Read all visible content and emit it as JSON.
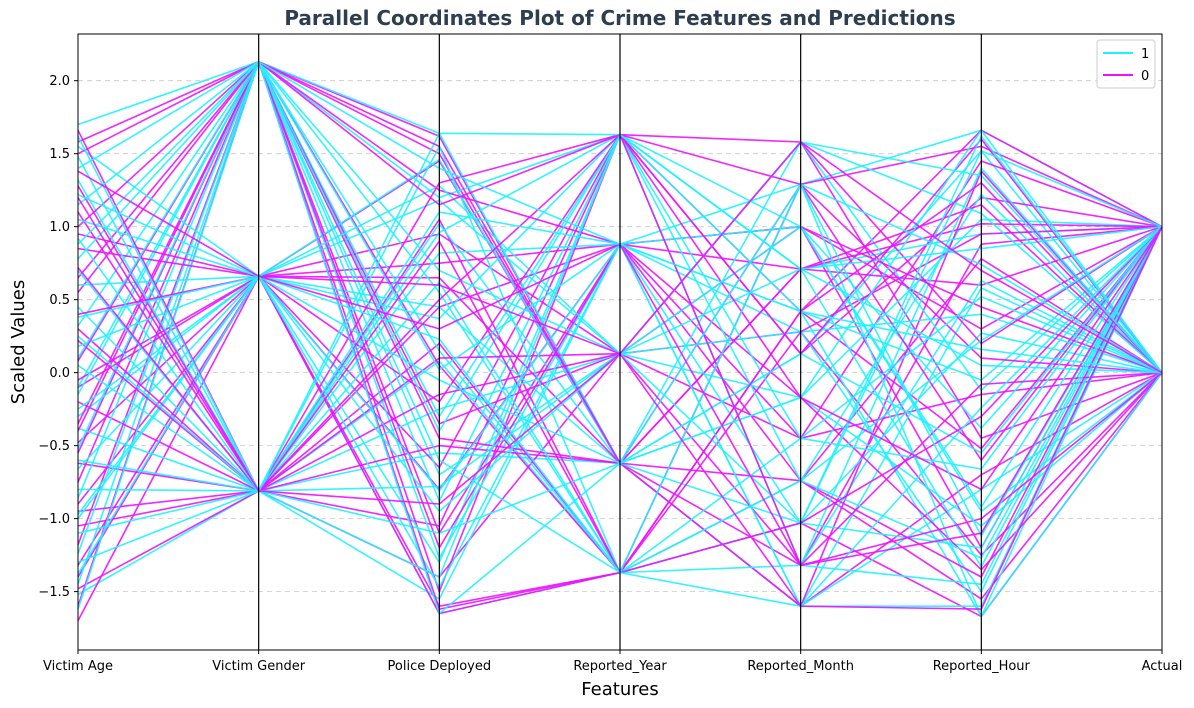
{
  "chart_data": {
    "type": "parallel_coordinates",
    "title": "Parallel Coordinates Plot of Crime Features and Predictions",
    "xlabel": "Features",
    "ylabel": "Scaled Values",
    "features": [
      "Victim Age",
      "Victim Gender",
      "Police Deployed",
      "Reported_Year",
      "Reported_Month",
      "Reported_Hour",
      "Actual"
    ],
    "ylim": [
      -1.9,
      2.32
    ],
    "yticks": [
      -1.5,
      -1.0,
      -0.5,
      0.0,
      0.5,
      1.0,
      1.5,
      2.0
    ],
    "ytick_labels": [
      "−1.5",
      "−1.0",
      "−0.5",
      "0.0",
      "0.5",
      "1.0",
      "1.5",
      "2.0"
    ],
    "grid": "y-dashed",
    "legend_position": "top-right",
    "legend": [
      {
        "label": "1",
        "color": "#1ff2ff"
      },
      {
        "label": "0",
        "color": "#ee10ff"
      }
    ],
    "discrete_levels": {
      "Victim Gender": [
        -0.81,
        0.66,
        2.13
      ],
      "Reported_Year": [
        -1.37,
        -0.62,
        0.13,
        0.88,
        1.63
      ],
      "Actual": [
        0.0,
        1.0
      ]
    },
    "series": [
      {
        "name": "1",
        "color": "#1ff2ff",
        "rows": [
          [
            1.7,
            2.13,
            0.7,
            0.13,
            -1.03,
            1.52,
            1.0
          ],
          [
            1.55,
            0.66,
            -0.81,
            0.88,
            1.29,
            -1.67,
            0.0
          ],
          [
            1.32,
            -0.81,
            1.64,
            1.63,
            0.71,
            0.85,
            1.0
          ],
          [
            1.15,
            2.13,
            -1.65,
            -0.62,
            -0.17,
            1.66,
            0.0
          ],
          [
            1.05,
            0.66,
            0.23,
            -1.37,
            -1.6,
            -0.24,
            1.0
          ],
          [
            0.92,
            -0.81,
            1.1,
            0.88,
            0.42,
            0.16,
            0.0
          ],
          [
            0.78,
            2.13,
            -0.4,
            1.63,
            -0.74,
            -1.27,
            1.0
          ],
          [
            0.6,
            0.66,
            1.28,
            0.13,
            1.58,
            1.09,
            0.0
          ],
          [
            0.45,
            -0.81,
            -1.1,
            -0.62,
            0.13,
            -0.55,
            1.0
          ],
          [
            0.32,
            2.13,
            0.55,
            -1.37,
            -1.32,
            1.4,
            0.0
          ],
          [
            0.18,
            0.66,
            -1.47,
            0.88,
            1.0,
            -0.92,
            1.0
          ],
          [
            0.05,
            -0.81,
            0.96,
            1.63,
            -0.45,
            0.52,
            0.0
          ],
          [
            -0.1,
            2.13,
            -0.7,
            0.13,
            0.28,
            -1.5,
            1.0
          ],
          [
            -0.25,
            0.66,
            1.46,
            -0.62,
            -1.03,
            0.27,
            0.0
          ],
          [
            -0.38,
            -0.81,
            0.08,
            -1.37,
            1.29,
            1.66,
            1.0
          ],
          [
            -0.52,
            2.13,
            -1.27,
            0.88,
            -1.6,
            -0.8,
            0.0
          ],
          [
            -0.66,
            0.66,
            0.37,
            1.63,
            0.71,
            0.95,
            1.0
          ],
          [
            -0.8,
            -0.81,
            -0.25,
            0.13,
            -0.17,
            -1.05,
            0.0
          ],
          [
            -0.86,
            2.13,
            1.64,
            -0.62,
            1.58,
            -0.12,
            1.0
          ],
          [
            -0.97,
            0.66,
            -1.65,
            -1.37,
            -0.74,
            1.22,
            0.0
          ],
          [
            -1.1,
            -0.81,
            0.82,
            0.88,
            0.42,
            -1.67,
            1.0
          ],
          [
            -1.24,
            2.13,
            -0.88,
            1.63,
            -1.32,
            0.63,
            0.0
          ],
          [
            -1.38,
            0.66,
            1.18,
            0.13,
            1.0,
            -0.38,
            1.0
          ],
          [
            -1.52,
            -0.81,
            -0.55,
            -0.62,
            0.13,
            1.52,
            0.0
          ],
          [
            -1.62,
            2.13,
            0.15,
            -1.37,
            -1.03,
            -1.2,
            1.0
          ],
          [
            1.62,
            -0.81,
            -1.4,
            1.63,
            0.71,
            0.05,
            0.0
          ],
          [
            1.4,
            2.13,
            1.4,
            0.88,
            -1.6,
            -1.6,
            1.0
          ],
          [
            1.22,
            0.66,
            -0.05,
            -0.62,
            1.29,
            0.74,
            0.0
          ],
          [
            0.7,
            -0.81,
            0.62,
            -1.37,
            -0.45,
            -0.66,
            1.0
          ],
          [
            0.38,
            0.66,
            -0.95,
            0.13,
            1.58,
            1.35,
            0.0
          ],
          [
            -0.15,
            2.13,
            1.2,
            1.63,
            -1.32,
            -1.45,
            1.0
          ],
          [
            -0.6,
            -0.81,
            -1.55,
            0.88,
            0.28,
            0.4,
            0.0
          ],
          [
            -1.0,
            0.66,
            0.45,
            -0.62,
            -0.17,
            1.05,
            1.0
          ],
          [
            -1.45,
            2.13,
            -0.3,
            1.63,
            1.0,
            -0.95,
            0.0
          ],
          [
            0.25,
            -0.81,
            1.55,
            -1.37,
            -0.74,
            0.22,
            1.0
          ],
          [
            1.48,
            -0.81,
            -0.78,
            0.13,
            0.71,
            -1.33,
            1.0
          ],
          [
            0.88,
            2.13,
            0.02,
            0.88,
            -1.03,
            1.62,
            0.0
          ],
          [
            -0.3,
            0.66,
            -1.3,
            1.63,
            0.42,
            -0.05,
            1.0
          ],
          [
            -1.3,
            -0.81,
            1.02,
            -0.62,
            -1.6,
            0.58,
            0.0
          ],
          [
            0.1,
            2.13,
            -0.6,
            -1.37,
            1.29,
            -1.12,
            1.0
          ]
        ]
      },
      {
        "name": "0",
        "color": "#ee10ff",
        "rows": [
          [
            1.66,
            -0.81,
            1.3,
            1.63,
            1.29,
            -0.6,
            1.0
          ],
          [
            1.5,
            2.13,
            -1.62,
            -1.37,
            0.42,
            1.3,
            0.0
          ],
          [
            1.38,
            0.66,
            0.3,
            0.88,
            -1.32,
            -1.1,
            1.0
          ],
          [
            1.2,
            -0.81,
            -0.9,
            0.13,
            1.58,
            0.7,
            0.0
          ],
          [
            1.0,
            2.13,
            1.55,
            -0.62,
            -0.74,
            -1.4,
            1.0
          ],
          [
            0.85,
            0.66,
            -0.2,
            1.63,
            0.13,
            1.6,
            0.0
          ],
          [
            0.72,
            -0.81,
            0.9,
            -1.37,
            -1.03,
            -0.3,
            1.0
          ],
          [
            0.55,
            2.13,
            -1.2,
            0.88,
            1.0,
            0.45,
            0.0
          ],
          [
            0.4,
            0.66,
            0.6,
            0.13,
            -1.6,
            -1.62,
            1.0
          ],
          [
            0.22,
            -0.81,
            -0.5,
            -0.62,
            0.71,
            1.15,
            0.0
          ],
          [
            0.08,
            2.13,
            1.15,
            1.63,
            -0.17,
            -0.8,
            1.0
          ],
          [
            -0.05,
            0.66,
            -1.6,
            -1.37,
            1.29,
            0.1,
            0.0
          ],
          [
            -0.2,
            -0.81,
            0.45,
            0.88,
            -0.45,
            1.45,
            1.0
          ],
          [
            -0.35,
            2.13,
            -0.35,
            0.13,
            0.28,
            -1.25,
            0.0
          ],
          [
            -0.48,
            0.66,
            1.45,
            -0.62,
            -1.32,
            0.88,
            1.0
          ],
          [
            -0.62,
            -0.81,
            -1.05,
            1.63,
            1.58,
            -0.45,
            0.0
          ],
          [
            -0.75,
            2.13,
            0.05,
            -1.37,
            0.42,
            1.66,
            1.0
          ],
          [
            -0.9,
            0.66,
            0.75,
            0.88,
            -0.74,
            -1.55,
            0.0
          ],
          [
            -1.05,
            -0.81,
            -1.4,
            0.13,
            1.0,
            0.3,
            1.0
          ],
          [
            -1.18,
            2.13,
            1.62,
            -0.62,
            -1.6,
            -0.7,
            0.0
          ],
          [
            -1.32,
            0.66,
            -0.65,
            1.63,
            0.13,
            1.2,
            1.0
          ],
          [
            -1.48,
            -0.81,
            0.2,
            -1.37,
            -1.03,
            -1.67,
            0.0
          ],
          [
            -1.6,
            2.13,
            -1.1,
            0.88,
            0.71,
            0.6,
            1.0
          ],
          [
            -1.7,
            0.66,
            0.95,
            0.13,
            -0.45,
            -0.15,
            0.0
          ],
          [
            1.58,
            2.13,
            -0.45,
            -0.62,
            1.29,
            1.55,
            1.0
          ],
          [
            1.28,
            -0.81,
            0.5,
            1.63,
            -1.32,
            -1.0,
            0.0
          ],
          [
            0.95,
            0.66,
            -1.65,
            -1.37,
            0.28,
            0.95,
            1.0
          ],
          [
            0.65,
            2.13,
            1.25,
            0.88,
            -0.17,
            -1.35,
            0.0
          ],
          [
            0.3,
            -0.81,
            -0.15,
            0.13,
            1.58,
            0.2,
            1.0
          ],
          [
            -0.1,
            0.66,
            0.65,
            -0.62,
            -1.6,
            1.38,
            0.0
          ],
          [
            -0.55,
            2.13,
            -1.5,
            1.63,
            0.42,
            -0.52,
            1.0
          ],
          [
            -0.95,
            -0.81,
            1.05,
            -1.37,
            -0.74,
            0.78,
            0.0
          ],
          [
            -1.4,
            0.66,
            -0.8,
            0.88,
            1.0,
            -1.2,
            1.0
          ],
          [
            1.1,
            -0.81,
            0.1,
            0.13,
            -1.32,
            -0.08,
            0.0
          ],
          [
            -0.4,
            2.13,
            1.5,
            -0.62,
            0.71,
            1.02,
            1.0
          ]
        ]
      }
    ]
  }
}
